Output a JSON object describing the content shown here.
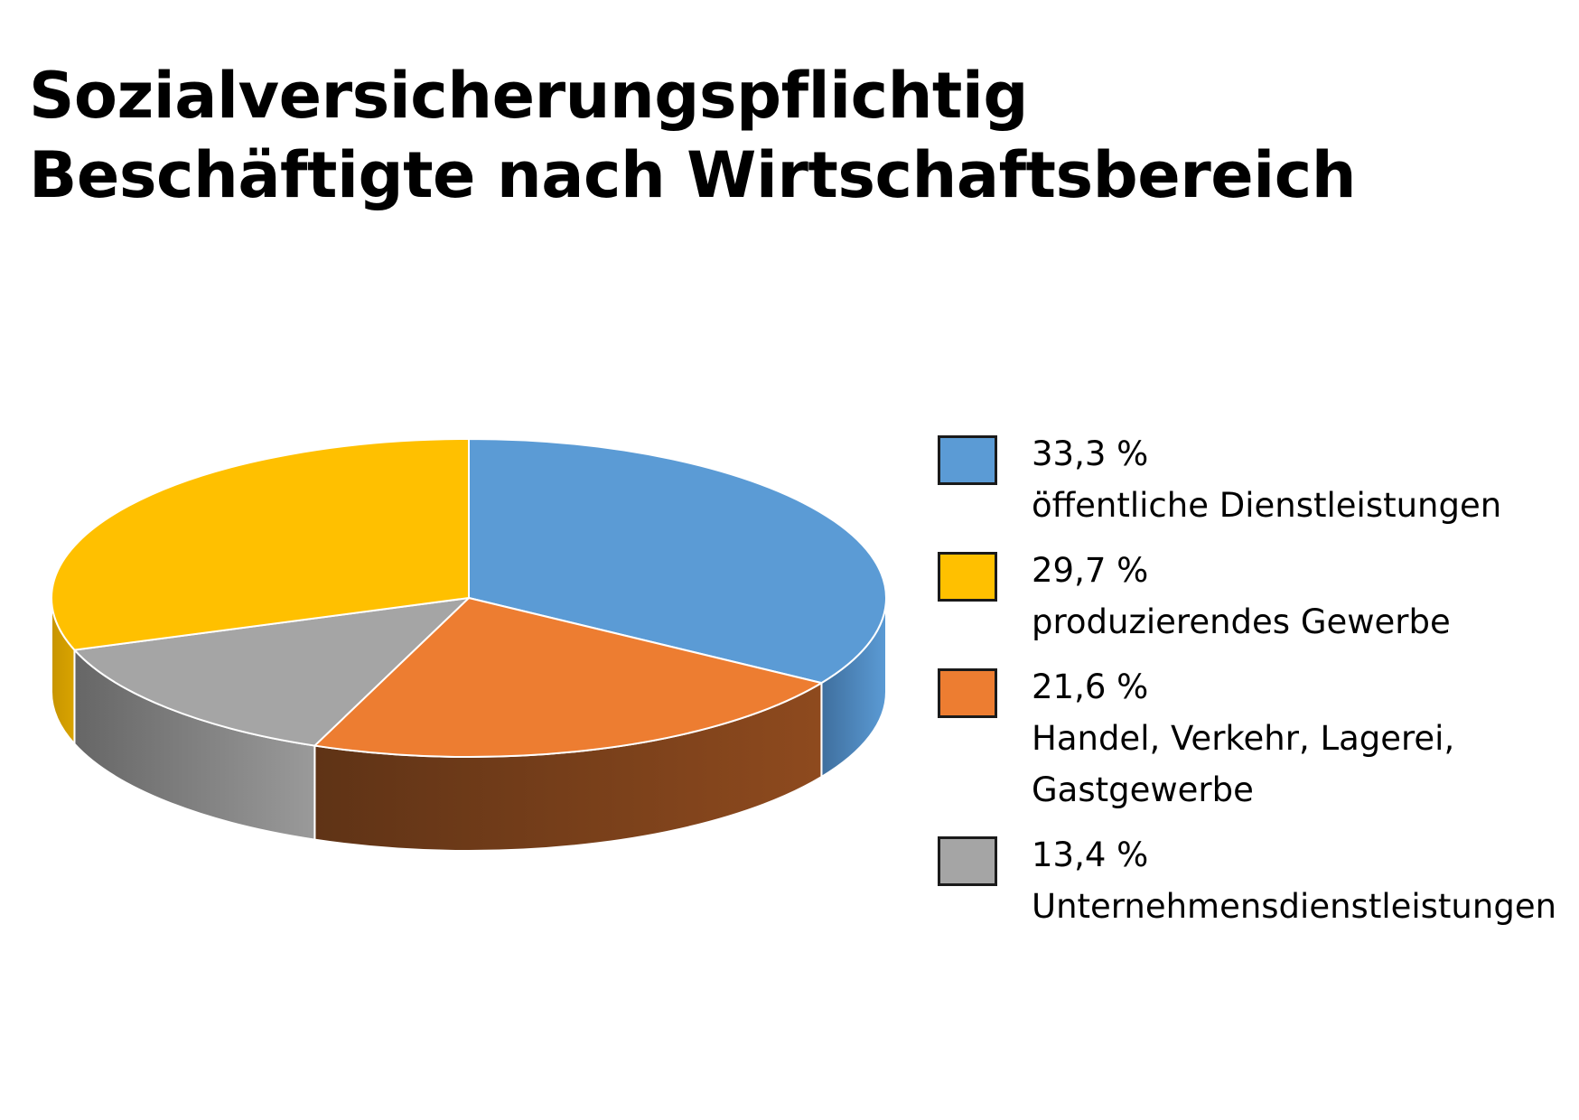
{
  "chart_data": {
    "type": "pie",
    "title_lines": [
      "Sozialversicherungspflichtig",
      "Beschäftigte nach Wirtschaftsbereich"
    ],
    "unit": "%",
    "slices": [
      {
        "value": 33.3,
        "value_label": "33,3 %",
        "label_lines": [
          "öffentliche Dienstleistungen"
        ],
        "color": "#5B9BD5",
        "side_colors": [
          "#5B9BD5",
          "#3F6F9E"
        ]
      },
      {
        "value": 21.6,
        "value_label": "21,6 %",
        "label_lines": [
          "Handel, Verkehr, Lagerei,",
          "Gastgewerbe"
        ],
        "color": "#ED7D31",
        "side_colors": [
          "#8E4A1E",
          "#5F3316"
        ]
      },
      {
        "value": 13.4,
        "value_label": "13,4 %",
        "label_lines": [
          "Unternehmensdienstleistungen"
        ],
        "color": "#A5A5A5",
        "side_colors": [
          "#9A9A9A",
          "#666666"
        ]
      },
      {
        "value": 29.7,
        "value_label": "29,7 %",
        "label_lines": [
          "produzierendes Gewerbe"
        ],
        "color": "#FFC000",
        "side_colors": [
          "#D9A400",
          "#C79400"
        ]
      }
    ],
    "legend_order": [
      0,
      3,
      1,
      2
    ],
    "legend_position": "right",
    "style": "3d-pie"
  }
}
